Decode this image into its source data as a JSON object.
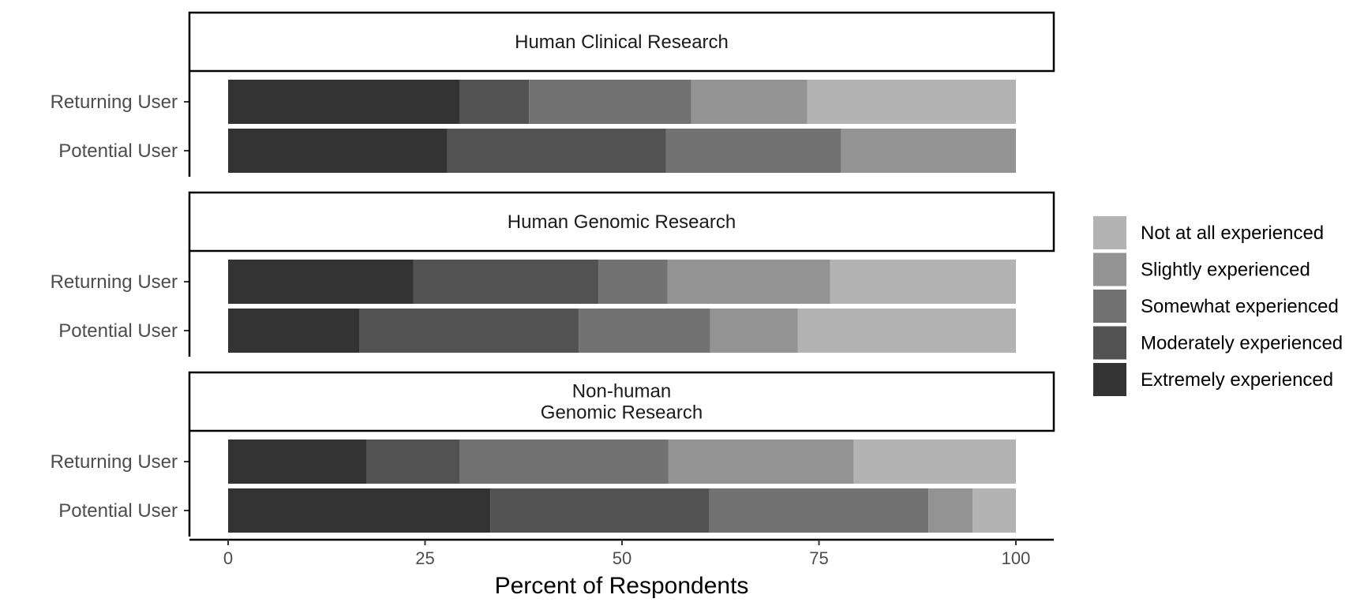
{
  "chart_data": {
    "type": "bar",
    "orientation": "horizontal",
    "stacked": true,
    "xlabel": "Percent of Respondents",
    "xlim": [
      0,
      100
    ],
    "x_ticks": [
      0,
      25,
      50,
      75,
      100
    ],
    "grid": false,
    "legend_position": "right",
    "categories": [
      "Returning User",
      "Potential User"
    ],
    "series": [
      {
        "name": "Extremely experienced",
        "color": "#333333"
      },
      {
        "name": "Moderately experienced",
        "color": "#525252"
      },
      {
        "name": "Somewhat experienced",
        "color": "#727272"
      },
      {
        "name": "Slightly experienced",
        "color": "#939393"
      },
      {
        "name": "Not at all experienced",
        "color": "#b3b3b3"
      }
    ],
    "legend_order": [
      "Not at all experienced",
      "Slightly experienced",
      "Somewhat experienced",
      "Moderately experienced",
      "Extremely experienced"
    ],
    "panels": [
      {
        "title": "Human Clinical Research",
        "rows": [
          {
            "category": "Returning User",
            "values": [
              29.4,
              8.8,
              20.6,
              14.7,
              26.5
            ]
          },
          {
            "category": "Potential User",
            "values": [
              27.8,
              27.8,
              22.2,
              22.2,
              0
            ]
          }
        ]
      },
      {
        "title": "Human Genomic Research",
        "rows": [
          {
            "category": "Returning User",
            "values": [
              23.5,
              23.5,
              8.8,
              20.6,
              23.6
            ]
          },
          {
            "category": "Potential User",
            "values": [
              16.7,
              27.8,
              16.7,
              11.1,
              27.7
            ]
          }
        ]
      },
      {
        "title": "Non-human\nGenomic Research",
        "rows": [
          {
            "category": "Returning User",
            "values": [
              17.6,
              11.8,
              26.5,
              23.5,
              20.6
            ]
          },
          {
            "category": "Potential User",
            "values": [
              33.3,
              27.8,
              27.8,
              5.6,
              5.5
            ]
          }
        ]
      }
    ]
  }
}
